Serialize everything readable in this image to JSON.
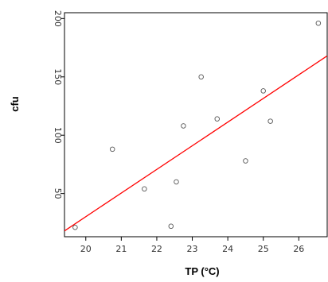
{
  "chart_data": {
    "type": "scatter",
    "title": "",
    "xlabel": "TP (°C)",
    "ylabel": "cfu",
    "xlim": [
      19.4,
      26.8
    ],
    "ylim": [
      13,
      205
    ],
    "x_ticks": [
      20,
      21,
      22,
      23,
      24,
      25,
      26
    ],
    "y_ticks": [
      50,
      100,
      150,
      200
    ],
    "grid": false,
    "legend": "none",
    "series": [
      {
        "points": [
          {
            "x": 19.7,
            "y": 21
          },
          {
            "x": 20.75,
            "y": 88
          },
          {
            "x": 21.65,
            "y": 54
          },
          {
            "x": 22.4,
            "y": 22
          },
          {
            "x": 22.55,
            "y": 60
          },
          {
            "x": 22.75,
            "y": 108
          },
          {
            "x": 23.25,
            "y": 150
          },
          {
            "x": 23.7,
            "y": 114
          },
          {
            "x": 24.5,
            "y": 78
          },
          {
            "x": 25.0,
            "y": 138
          },
          {
            "x": 25.2,
            "y": 112
          },
          {
            "x": 26.55,
            "y": 196
          }
        ],
        "marker_color": "#555555"
      }
    ],
    "fit_line": {
      "type": "linear",
      "points": [
        {
          "x": 19.4,
          "y": 18
        },
        {
          "x": 26.8,
          "y": 168
        }
      ],
      "color": "#ff0000"
    }
  }
}
